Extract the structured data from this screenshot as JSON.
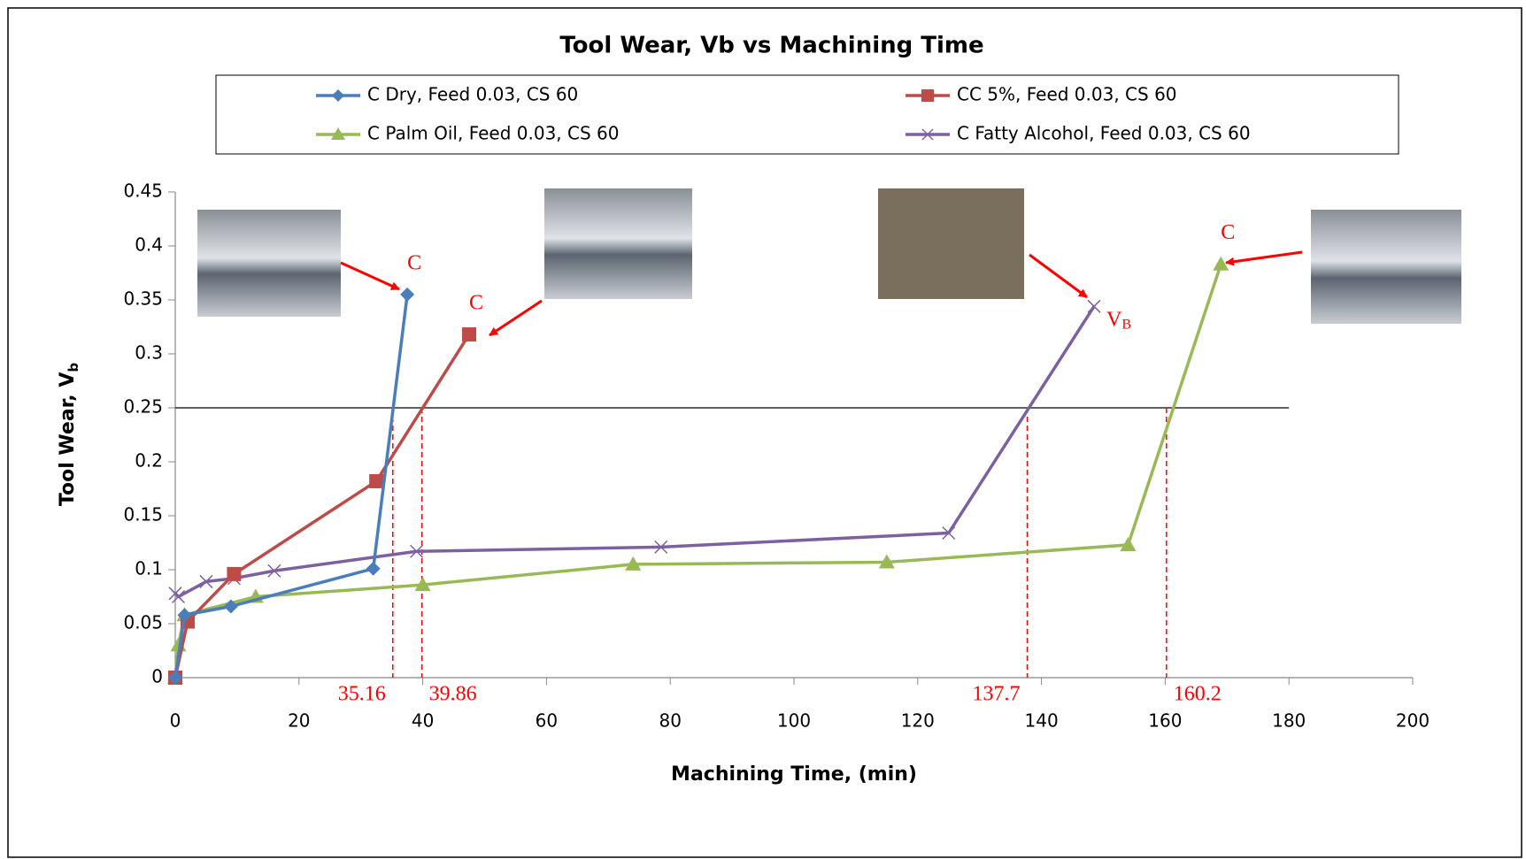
{
  "chart_data": {
    "type": "line",
    "title": "Tool Wear, Vb vs Machining Time",
    "x_label": "Machining Time, (min)",
    "y_label": "Tool Wear, V",
    "y_label_sub": "b",
    "xlim": [
      0,
      200
    ],
    "xticks": [
      0,
      20,
      40,
      60,
      80,
      100,
      120,
      140,
      160,
      180,
      200
    ],
    "ylim": [
      0,
      0.45
    ],
    "yticks": [
      0,
      0.05,
      0.1,
      0.15,
      0.2,
      0.25,
      0.3,
      0.35,
      0.4,
      0.45
    ],
    "threshold": 0.25,
    "crossings": [
      35.16,
      39.86,
      137.7,
      160.2
    ],
    "series": [
      {
        "name": "C Dry, Feed 0.03, CS 60",
        "color": "#4a7ebb",
        "marker": "diamond",
        "end_label": "C",
        "x": [
          0,
          1.5,
          9,
          32,
          37.5
        ],
        "values": [
          0,
          0.058,
          0.066,
          0.101,
          0.355
        ]
      },
      {
        "name": "CC 5%, Feed 0.03, CS 60",
        "color": "#be4b48",
        "marker": "square",
        "end_label": "C",
        "x": [
          0,
          2,
          9.5,
          32.5,
          47.5
        ],
        "values": [
          0,
          0.052,
          0.096,
          0.182,
          0.318
        ]
      },
      {
        "name": "C Palm Oil, Feed 0.03, CS 60",
        "color": "#98b954",
        "marker": "triangle",
        "end_label": "C",
        "x": [
          0,
          0.5,
          1.5,
          13,
          40,
          74,
          115,
          154,
          169
        ],
        "values": [
          0,
          0.03,
          0.058,
          0.075,
          0.086,
          0.105,
          0.107,
          0.123,
          0.383
        ]
      },
      {
        "name": "C Fatty Alcohol, Feed 0.03, CS 60",
        "color": "#7d60a0",
        "marker": "x",
        "end_label": "V",
        "end_label_sub": "B",
        "x": [
          0,
          0.5,
          5,
          9.5,
          16,
          39,
          78.5,
          125,
          148.5
        ],
        "values": [
          0.078,
          0.075,
          0.089,
          0.092,
          0.099,
          0.117,
          0.121,
          0.134,
          0.344
        ]
      }
    ]
  }
}
